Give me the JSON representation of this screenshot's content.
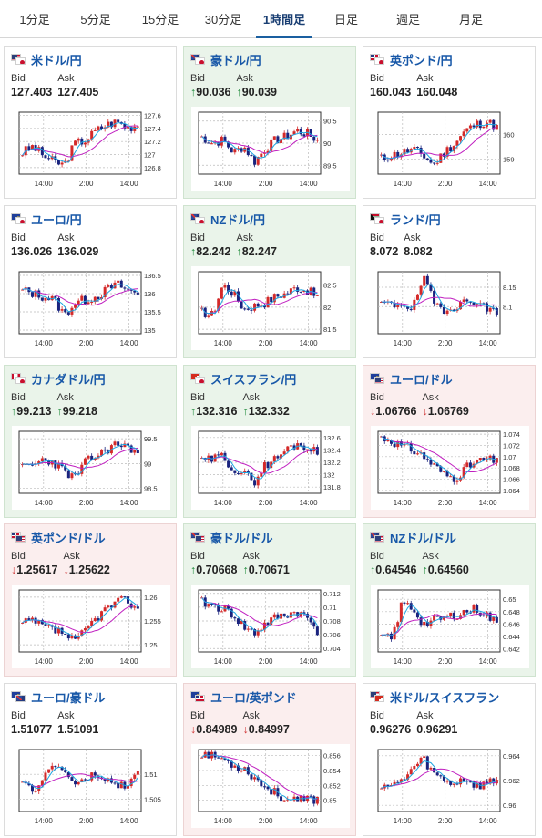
{
  "tabs": [
    {
      "label": "1分足",
      "active": false
    },
    {
      "label": "5分足",
      "active": false
    },
    {
      "label": "15分足",
      "active": false
    },
    {
      "label": "30分足",
      "active": false
    },
    {
      "label": "1時間足",
      "active": true
    },
    {
      "label": "日足",
      "active": false
    },
    {
      "label": "週足",
      "active": false
    },
    {
      "label": "月足",
      "active": false
    }
  ],
  "labels": {
    "bid": "Bid",
    "ask": "Ask"
  },
  "colors": {
    "up_arrow": "#1d8a3a",
    "down_arrow": "#d03535",
    "candle_up": "#d42a2a",
    "candle_down": "#1a237e",
    "ma_fast": "#1ea6e0",
    "ma_slow": "#c020c0"
  },
  "pairs": [
    {
      "name": "米ドル/円",
      "flags": [
        "us-flag-icon",
        "japan-flag-icon"
      ],
      "bid": "127.403",
      "ask": "127.405",
      "trend": "none",
      "bid_arrow": "",
      "ask_arrow": "",
      "chart_data": {
        "type": "candlestick",
        "x_labels": [
          "14:00",
          "2:00",
          "14:00"
        ],
        "y_ticks": [
          "127.6",
          "127.4",
          "127.2",
          "127",
          "126.8"
        ],
        "ylim": [
          126.7,
          127.65
        ],
        "start": 127.0,
        "end": 127.4,
        "path": [
          0.35,
          0.45,
          0.3,
          0.2,
          0.15,
          0.5,
          0.55,
          0.7,
          0.8,
          0.85,
          0.75,
          0.8
        ],
        "seed": 3
      }
    },
    {
      "name": "豪ドル/円",
      "flags": [
        "australia-flag-icon",
        "japan-flag-icon"
      ],
      "bid": "90.036",
      "ask": "90.039",
      "trend": "up",
      "bid_arrow": "↑",
      "ask_arrow": "↑",
      "chart_data": {
        "type": "candlestick",
        "x_labels": [
          "14:00",
          "2:00",
          "14:00"
        ],
        "y_ticks": [
          "90.5",
          "90",
          "89.5"
        ],
        "ylim": [
          89.3,
          90.7
        ],
        "start": 90.1,
        "end": 90.0,
        "path": [
          0.6,
          0.5,
          0.55,
          0.35,
          0.45,
          0.2,
          0.4,
          0.55,
          0.6,
          0.7,
          0.65,
          0.55
        ],
        "seed": 7
      }
    },
    {
      "name": "英ポンド/円",
      "flags": [
        "uk-flag-icon",
        "japan-flag-icon"
      ],
      "bid": "160.043",
      "ask": "160.048",
      "trend": "none",
      "bid_arrow": "",
      "ask_arrow": "",
      "chart_data": {
        "type": "candlestick",
        "x_labels": [
          "14:00",
          "2:00",
          "14:00"
        ],
        "y_ticks": [
          "160",
          "159"
        ],
        "ylim": [
          158.4,
          160.9
        ],
        "start": 159.2,
        "end": 160.0,
        "path": [
          0.25,
          0.3,
          0.35,
          0.4,
          0.3,
          0.15,
          0.35,
          0.5,
          0.7,
          0.8,
          0.85,
          0.75
        ],
        "seed": 11
      }
    },
    {
      "name": "ユーロ/円",
      "flags": [
        "eu-flag-icon",
        "japan-flag-icon"
      ],
      "bid": "136.026",
      "ask": "136.029",
      "trend": "none",
      "bid_arrow": "",
      "ask_arrow": "",
      "chart_data": {
        "type": "candlestick",
        "x_labels": [
          "14:00",
          "2:00",
          "14:00"
        ],
        "y_ticks": [
          "136.5",
          "136",
          "135.5",
          "135"
        ],
        "ylim": [
          134.9,
          136.6
        ],
        "start": 136.1,
        "end": 136.0,
        "path": [
          0.7,
          0.65,
          0.6,
          0.55,
          0.3,
          0.5,
          0.55,
          0.6,
          0.7,
          0.8,
          0.7,
          0.65
        ],
        "seed": 13
      }
    },
    {
      "name": "NZドル/円",
      "flags": [
        "nz-flag-icon",
        "japan-flag-icon"
      ],
      "bid": "82.242",
      "ask": "82.247",
      "trend": "up",
      "bid_arrow": "↑",
      "ask_arrow": "↑",
      "chart_data": {
        "type": "candlestick",
        "x_labels": [
          "14:00",
          "2:00",
          "14:00"
        ],
        "y_ticks": [
          "82.5",
          "82",
          "81.5"
        ],
        "ylim": [
          81.4,
          82.8
        ],
        "start": 81.9,
        "end": 82.2,
        "path": [
          0.35,
          0.3,
          0.8,
          0.65,
          0.4,
          0.45,
          0.5,
          0.6,
          0.65,
          0.75,
          0.7,
          0.6
        ],
        "seed": 17
      }
    },
    {
      "name": "ランド/円",
      "flags": [
        "south-africa-flag-icon",
        "japan-flag-icon"
      ],
      "bid": "8.072",
      "ask": "8.082",
      "trend": "none",
      "bid_arrow": "",
      "ask_arrow": "",
      "chart_data": {
        "type": "candlestick",
        "x_labels": [
          "14:00",
          "2:00",
          "14:00"
        ],
        "y_ticks": [
          "8.15",
          "8.1"
        ],
        "ylim": [
          8.03,
          8.19
        ],
        "start": 8.09,
        "end": 8.07,
        "path": [
          0.5,
          0.45,
          0.5,
          0.4,
          0.9,
          0.5,
          0.4,
          0.45,
          0.5,
          0.55,
          0.4,
          0.35
        ],
        "seed": 19
      }
    },
    {
      "name": "カナダドル/円",
      "flags": [
        "canada-flag-icon",
        "japan-flag-icon"
      ],
      "bid": "99.213",
      "ask": "99.218",
      "trend": "up",
      "bid_arrow": "↑",
      "ask_arrow": "↑",
      "chart_data": {
        "type": "candlestick",
        "x_labels": [
          "14:00",
          "2:00",
          "14:00"
        ],
        "y_ticks": [
          "99.5",
          "99",
          "98.5"
        ],
        "ylim": [
          98.4,
          99.65
        ],
        "start": 99.0,
        "end": 99.2,
        "path": [
          0.4,
          0.45,
          0.55,
          0.5,
          0.35,
          0.25,
          0.5,
          0.6,
          0.7,
          0.8,
          0.75,
          0.65
        ],
        "seed": 23
      }
    },
    {
      "name": "スイスフラン/円",
      "flags": [
        "swiss-flag-icon",
        "japan-flag-icon"
      ],
      "bid": "132.316",
      "ask": "132.332",
      "trend": "up",
      "bid_arrow": "↑",
      "ask_arrow": "↑",
      "chart_data": {
        "type": "candlestick",
        "x_labels": [
          "14:00",
          "2:00",
          "14:00"
        ],
        "y_ticks": [
          "132.6",
          "132.4",
          "132.2",
          "132",
          "131.8"
        ],
        "ylim": [
          131.7,
          132.7
        ],
        "start": 132.1,
        "end": 132.3,
        "path": [
          0.5,
          0.55,
          0.6,
          0.4,
          0.3,
          0.2,
          0.45,
          0.55,
          0.7,
          0.8,
          0.75,
          0.65
        ],
        "seed": 29
      }
    },
    {
      "name": "ユーロ/ドル",
      "flags": [
        "eu-flag-icon",
        "us-flag-icon"
      ],
      "bid": "1.06766",
      "ask": "1.06769",
      "trend": "down",
      "bid_arrow": "↓",
      "ask_arrow": "↓",
      "chart_data": {
        "type": "candlestick",
        "x_labels": [
          "14:00",
          "2:00",
          "14:00"
        ],
        "y_ticks": [
          "1.074",
          "1.072",
          "1.07",
          "1.068",
          "1.066",
          "1.064"
        ],
        "ylim": [
          1.0635,
          1.0745
        ],
        "start": 1.073,
        "end": 1.0677,
        "path": [
          0.9,
          0.85,
          0.75,
          0.7,
          0.6,
          0.45,
          0.3,
          0.25,
          0.4,
          0.5,
          0.55,
          0.5
        ],
        "seed": 31
      }
    },
    {
      "name": "英ポンド/ドル",
      "flags": [
        "uk-flag-icon",
        "us-flag-icon"
      ],
      "bid": "1.25617",
      "ask": "1.25622",
      "trend": "down",
      "bid_arrow": "↓",
      "ask_arrow": "↓",
      "chart_data": {
        "type": "candlestick",
        "x_labels": [
          "14:00",
          "2:00",
          "14:00"
        ],
        "y_ticks": [
          "1.26",
          "1.255",
          "1.25"
        ],
        "ylim": [
          1.2485,
          1.2615
        ],
        "start": 1.2545,
        "end": 1.2562,
        "path": [
          0.45,
          0.5,
          0.4,
          0.35,
          0.3,
          0.15,
          0.35,
          0.55,
          0.7,
          0.8,
          0.85,
          0.65
        ],
        "seed": 37
      }
    },
    {
      "name": "豪ドル/ドル",
      "flags": [
        "australia-flag-icon",
        "us-flag-icon"
      ],
      "bid": "0.70668",
      "ask": "0.70671",
      "trend": "up",
      "bid_arrow": "↑",
      "ask_arrow": "↑",
      "chart_data": {
        "type": "candlestick",
        "x_labels": [
          "14:00",
          "2:00",
          "14:00"
        ],
        "y_ticks": [
          "0.712",
          "0.71",
          "0.708",
          "0.706",
          "0.704"
        ],
        "ylim": [
          0.7035,
          0.7125
        ],
        "start": 0.7095,
        "end": 0.7067,
        "path": [
          0.8,
          0.75,
          0.7,
          0.6,
          0.4,
          0.3,
          0.45,
          0.55,
          0.6,
          0.65,
          0.55,
          0.35
        ],
        "seed": 41
      }
    },
    {
      "name": "NZドル/ドル",
      "flags": [
        "nz-flag-icon",
        "us-flag-icon"
      ],
      "bid": "0.64546",
      "ask": "0.64560",
      "trend": "up",
      "bid_arrow": "↑",
      "ask_arrow": "↑",
      "chart_data": {
        "type": "candlestick",
        "x_labels": [
          "14:00",
          "2:00",
          "14:00"
        ],
        "y_ticks": [
          "0.65",
          "0.648",
          "0.646",
          "0.644",
          "0.642"
        ],
        "ylim": [
          0.6415,
          0.6515
        ],
        "start": 0.6435,
        "end": 0.6455,
        "path": [
          0.25,
          0.2,
          0.8,
          0.7,
          0.45,
          0.5,
          0.55,
          0.6,
          0.65,
          0.7,
          0.6,
          0.45
        ],
        "seed": 43
      }
    },
    {
      "name": "ユーロ/豪ドル",
      "flags": [
        "eu-flag-icon",
        "australia-flag-icon"
      ],
      "bid": "1.51077",
      "ask": "1.51091",
      "trend": "none",
      "bid_arrow": "",
      "ask_arrow": "",
      "chart_data": {
        "type": "candlestick",
        "x_labels": [
          "14:00",
          "2:00",
          "14:00"
        ],
        "y_ticks": [
          "1.51",
          "1.505"
        ],
        "ylim": [
          1.5025,
          1.515
        ],
        "start": 1.508,
        "end": 1.5108,
        "path": [
          0.4,
          0.35,
          0.55,
          0.75,
          0.65,
          0.45,
          0.5,
          0.6,
          0.5,
          0.4,
          0.45,
          0.6
        ],
        "seed": 47
      }
    },
    {
      "name": "ユーロ/英ポンド",
      "flags": [
        "eu-flag-icon",
        "uk-flag-icon"
      ],
      "bid": "0.84989",
      "ask": "0.84997",
      "trend": "down",
      "bid_arrow": "↓",
      "ask_arrow": "↓",
      "chart_data": {
        "type": "candlestick",
        "x_labels": [
          "14:00",
          "2:00",
          "14:00"
        ],
        "y_ticks": [
          "0.856",
          "0.854",
          "0.852",
          "0.85"
        ],
        "ylim": [
          0.8485,
          0.8568
        ],
        "start": 0.856,
        "end": 0.8499,
        "path": [
          0.95,
          0.9,
          0.85,
          0.75,
          0.7,
          0.55,
          0.4,
          0.3,
          0.2,
          0.15,
          0.2,
          0.2
        ],
        "seed": 53
      }
    },
    {
      "name": "米ドル/スイスフラン",
      "flags": [
        "us-flag-icon",
        "swiss-flag-icon"
      ],
      "bid": "0.96276",
      "ask": "0.96291",
      "trend": "none",
      "bid_arrow": "",
      "ask_arrow": "",
      "chart_data": {
        "type": "candlestick",
        "x_labels": [
          "14:00",
          "2:00",
          "14:00"
        ],
        "y_ticks": [
          "0.964",
          "0.962",
          "0.96"
        ],
        "ylim": [
          0.9595,
          0.9645
        ],
        "start": 0.9615,
        "end": 0.9628,
        "path": [
          0.45,
          0.4,
          0.5,
          0.7,
          0.85,
          0.6,
          0.5,
          0.45,
          0.55,
          0.4,
          0.45,
          0.5
        ],
        "seed": 59
      }
    }
  ]
}
